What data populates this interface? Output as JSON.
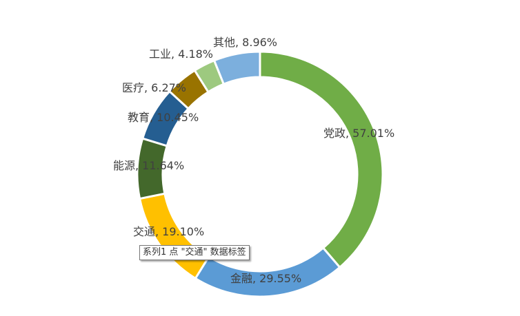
{
  "chart_data": {
    "type": "pie",
    "variant": "doughnut",
    "slices": [
      {
        "category": "党政",
        "value": 57.01,
        "label": "党政, 57.01%",
        "color": "#70AD47"
      },
      {
        "category": "金融",
        "value": 29.55,
        "label": "金融, 29.55%",
        "color": "#5B9BD5"
      },
      {
        "category": "交通",
        "value": 19.1,
        "label": "交通, 19.10%",
        "color": "#FFC000"
      },
      {
        "category": "能源",
        "value": 11.64,
        "label": "能源, 11.64%",
        "color": "#43682B"
      },
      {
        "category": "教育",
        "value": 10.45,
        "label": "教育, 10.45%",
        "color": "#255E91"
      },
      {
        "category": "医疗",
        "value": 6.27,
        "label": "医疗, 6.27%",
        "color": "#997300"
      },
      {
        "category": "工业",
        "value": 4.18,
        "label": "工业, 4.18%",
        "color": "#9DC97F"
      },
      {
        "category": "其他",
        "value": 8.96,
        "label": "其他, 8.96%",
        "color": "#7CAFDD"
      }
    ],
    "legend": "none",
    "start_angle": "12 o'clock, clockwise"
  },
  "tooltip": {
    "text": "系列1 点 \"交通\" 数据标签"
  }
}
